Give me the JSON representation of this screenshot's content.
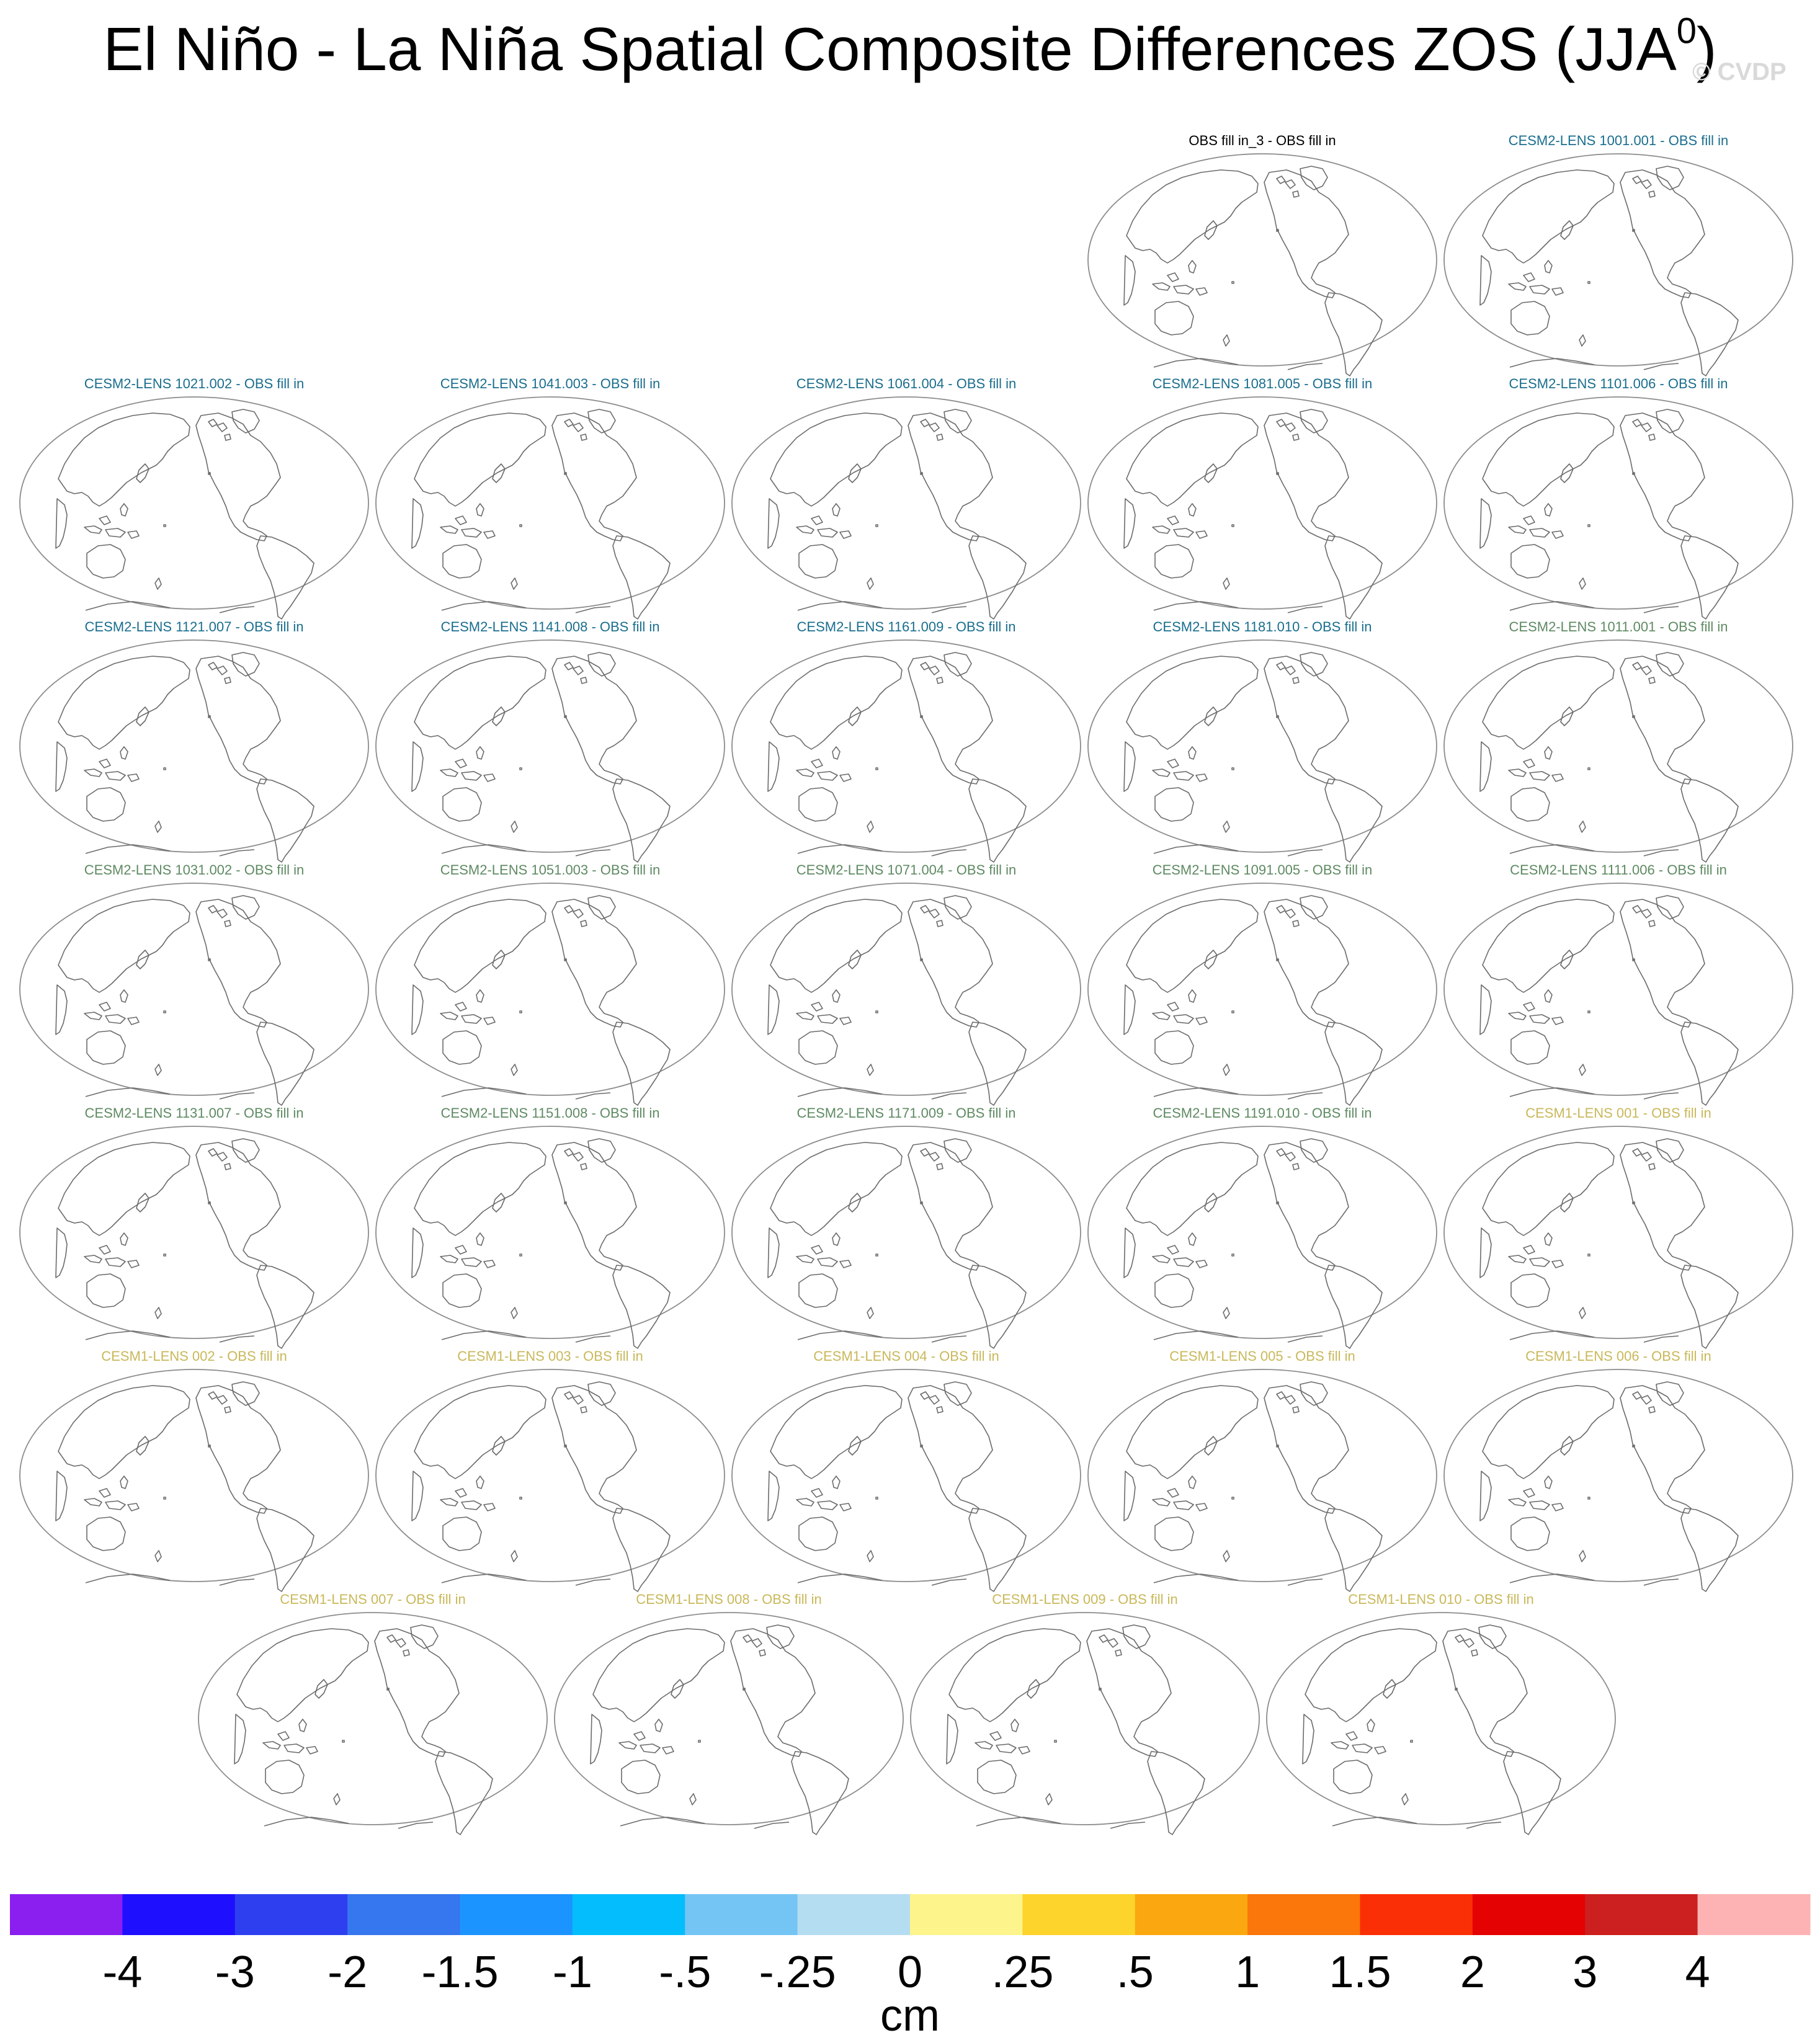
{
  "title_main": "El Niño - La Niña Spatial Composite Differences ZOS (JJA",
  "title_sup": "0",
  "title_close": ")",
  "watermark": "© CVDP",
  "panels": [
    {
      "label": "OBS fill in_3 - OBS fill in",
      "color": "#000000"
    },
    {
      "label": "CESM2-LENS 1001.001 - OBS fill in",
      "color": "#1a6e8e"
    },
    {
      "label": "CESM2-LENS 1021.002 - OBS fill in",
      "color": "#1a6e8e"
    },
    {
      "label": "CESM2-LENS 1041.003 - OBS fill in",
      "color": "#1a6e8e"
    },
    {
      "label": "CESM2-LENS 1061.004 - OBS fill in",
      "color": "#1a6e8e"
    },
    {
      "label": "CESM2-LENS 1081.005 - OBS fill in",
      "color": "#1a6e8e"
    },
    {
      "label": "CESM2-LENS 1101.006 - OBS fill in",
      "color": "#1a6e8e"
    },
    {
      "label": "CESM2-LENS 1121.007 - OBS fill in",
      "color": "#1a6e8e"
    },
    {
      "label": "CESM2-LENS 1141.008 - OBS fill in",
      "color": "#1a6e8e"
    },
    {
      "label": "CESM2-LENS 1161.009 - OBS fill in",
      "color": "#1a6e8e"
    },
    {
      "label": "CESM2-LENS 1181.010 - OBS fill in",
      "color": "#1a6e8e"
    },
    {
      "label": "CESM2-LENS 1011.001 - OBS fill in",
      "color": "#5e8a62"
    },
    {
      "label": "CESM2-LENS 1031.002 - OBS fill in",
      "color": "#5e8a62"
    },
    {
      "label": "CESM2-LENS 1051.003 - OBS fill in",
      "color": "#5e8a62"
    },
    {
      "label": "CESM2-LENS 1071.004 - OBS fill in",
      "color": "#5e8a62"
    },
    {
      "label": "CESM2-LENS 1091.005 - OBS fill in",
      "color": "#5e8a62"
    },
    {
      "label": "CESM2-LENS 1111.006 - OBS fill in",
      "color": "#5e8a62"
    },
    {
      "label": "CESM2-LENS 1131.007 - OBS fill in",
      "color": "#5e8a62"
    },
    {
      "label": "CESM2-LENS 1151.008 - OBS fill in",
      "color": "#5e8a62"
    },
    {
      "label": "CESM2-LENS 1171.009 - OBS fill in",
      "color": "#5e8a62"
    },
    {
      "label": "CESM2-LENS 1191.010 - OBS fill in",
      "color": "#5e8a62"
    },
    {
      "label": "CESM1-LENS 001 - OBS fill in",
      "color": "#c9b85a"
    },
    {
      "label": "CESM1-LENS 002 - OBS fill in",
      "color": "#c9b85a"
    },
    {
      "label": "CESM1-LENS 003 - OBS fill in",
      "color": "#c9b85a"
    },
    {
      "label": "CESM1-LENS 004 - OBS fill in",
      "color": "#c9b85a"
    },
    {
      "label": "CESM1-LENS 005 - OBS fill in",
      "color": "#c9b85a"
    },
    {
      "label": "CESM1-LENS 006 - OBS fill in",
      "color": "#c9b85a"
    },
    {
      "label": "CESM1-LENS 007 - OBS fill in",
      "color": "#c9b85a"
    },
    {
      "label": "CESM1-LENS 008 - OBS fill in",
      "color": "#c9b85a"
    },
    {
      "label": "CESM1-LENS 009 - OBS fill in",
      "color": "#c9b85a"
    },
    {
      "label": "CESM1-LENS 010 - OBS fill in",
      "color": "#c9b85a"
    }
  ],
  "colorbar": {
    "unit": "cm",
    "colors": [
      "#8a1ff0",
      "#1f0fff",
      "#2e3ff0",
      "#3676ee",
      "#1c94ff",
      "#04bdfc",
      "#74c5f4",
      "#b5ddf2",
      "#fdf48c",
      "#fdd42b",
      "#fba70f",
      "#fb760b",
      "#fb2f05",
      "#e50202",
      "#cc1f1f",
      "#fdb3b3"
    ],
    "tick_labels": [
      "-4",
      "-3",
      "-2",
      "-1.5",
      "-1",
      "-.5",
      "-.25",
      "0",
      ".25",
      ".5",
      "1",
      "1.5",
      "2",
      "3",
      "4"
    ]
  }
}
